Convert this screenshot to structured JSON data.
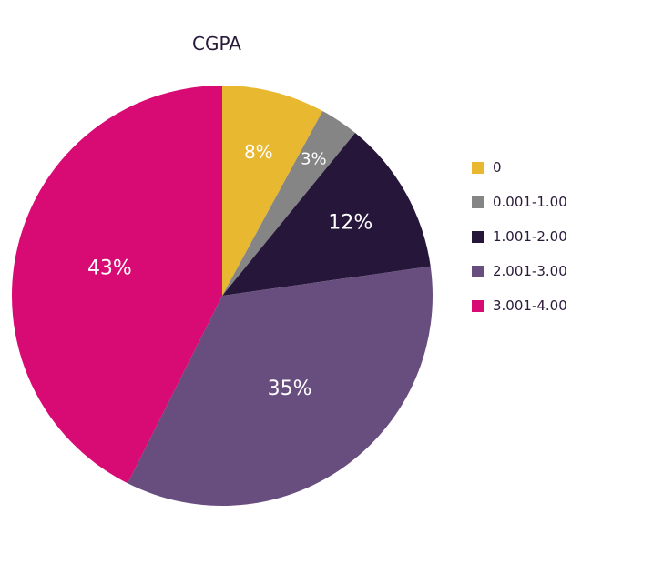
{
  "chart_data": {
    "type": "pie",
    "title": "CGPA",
    "legend_position": "right",
    "slices": [
      {
        "label": "0",
        "value": 8,
        "display": "8%",
        "color": "#e8b830"
      },
      {
        "label": "0.001-1.00",
        "value": 3,
        "display": "3%",
        "color": "#858585"
      },
      {
        "label": "1.001-2.00",
        "value": 12,
        "display": "12%",
        "color": "#26163a"
      },
      {
        "label": "2.001-3.00",
        "value": 35,
        "display": "35%",
        "color": "#684e7f"
      },
      {
        "label": "3.001-4.00",
        "value": 43,
        "display": "43%",
        "color": "#d80a74"
      }
    ]
  }
}
